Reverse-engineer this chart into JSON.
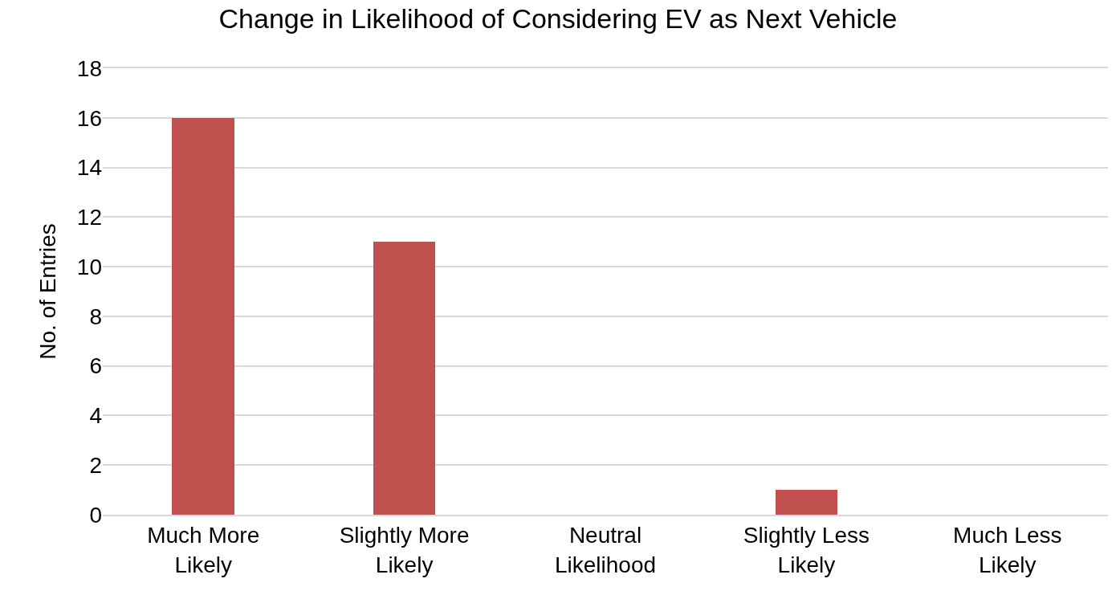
{
  "chart_data": {
    "type": "bar",
    "title": "Change in Likelihood of Considering EV as Next Vehicle",
    "ylabel": "No. of Entries",
    "categories": [
      "Much More Likely",
      "Slightly More Likely",
      "Neutral Likelihood",
      "Slightly Less Likely",
      "Much Less Likely"
    ],
    "values": [
      16,
      11,
      0,
      1,
      0
    ],
    "color": "#c0504d",
    "ylim": [
      0,
      18
    ],
    "yticks": [
      0,
      2,
      4,
      6,
      8,
      10,
      12,
      14,
      16,
      18
    ],
    "grid": "y"
  }
}
